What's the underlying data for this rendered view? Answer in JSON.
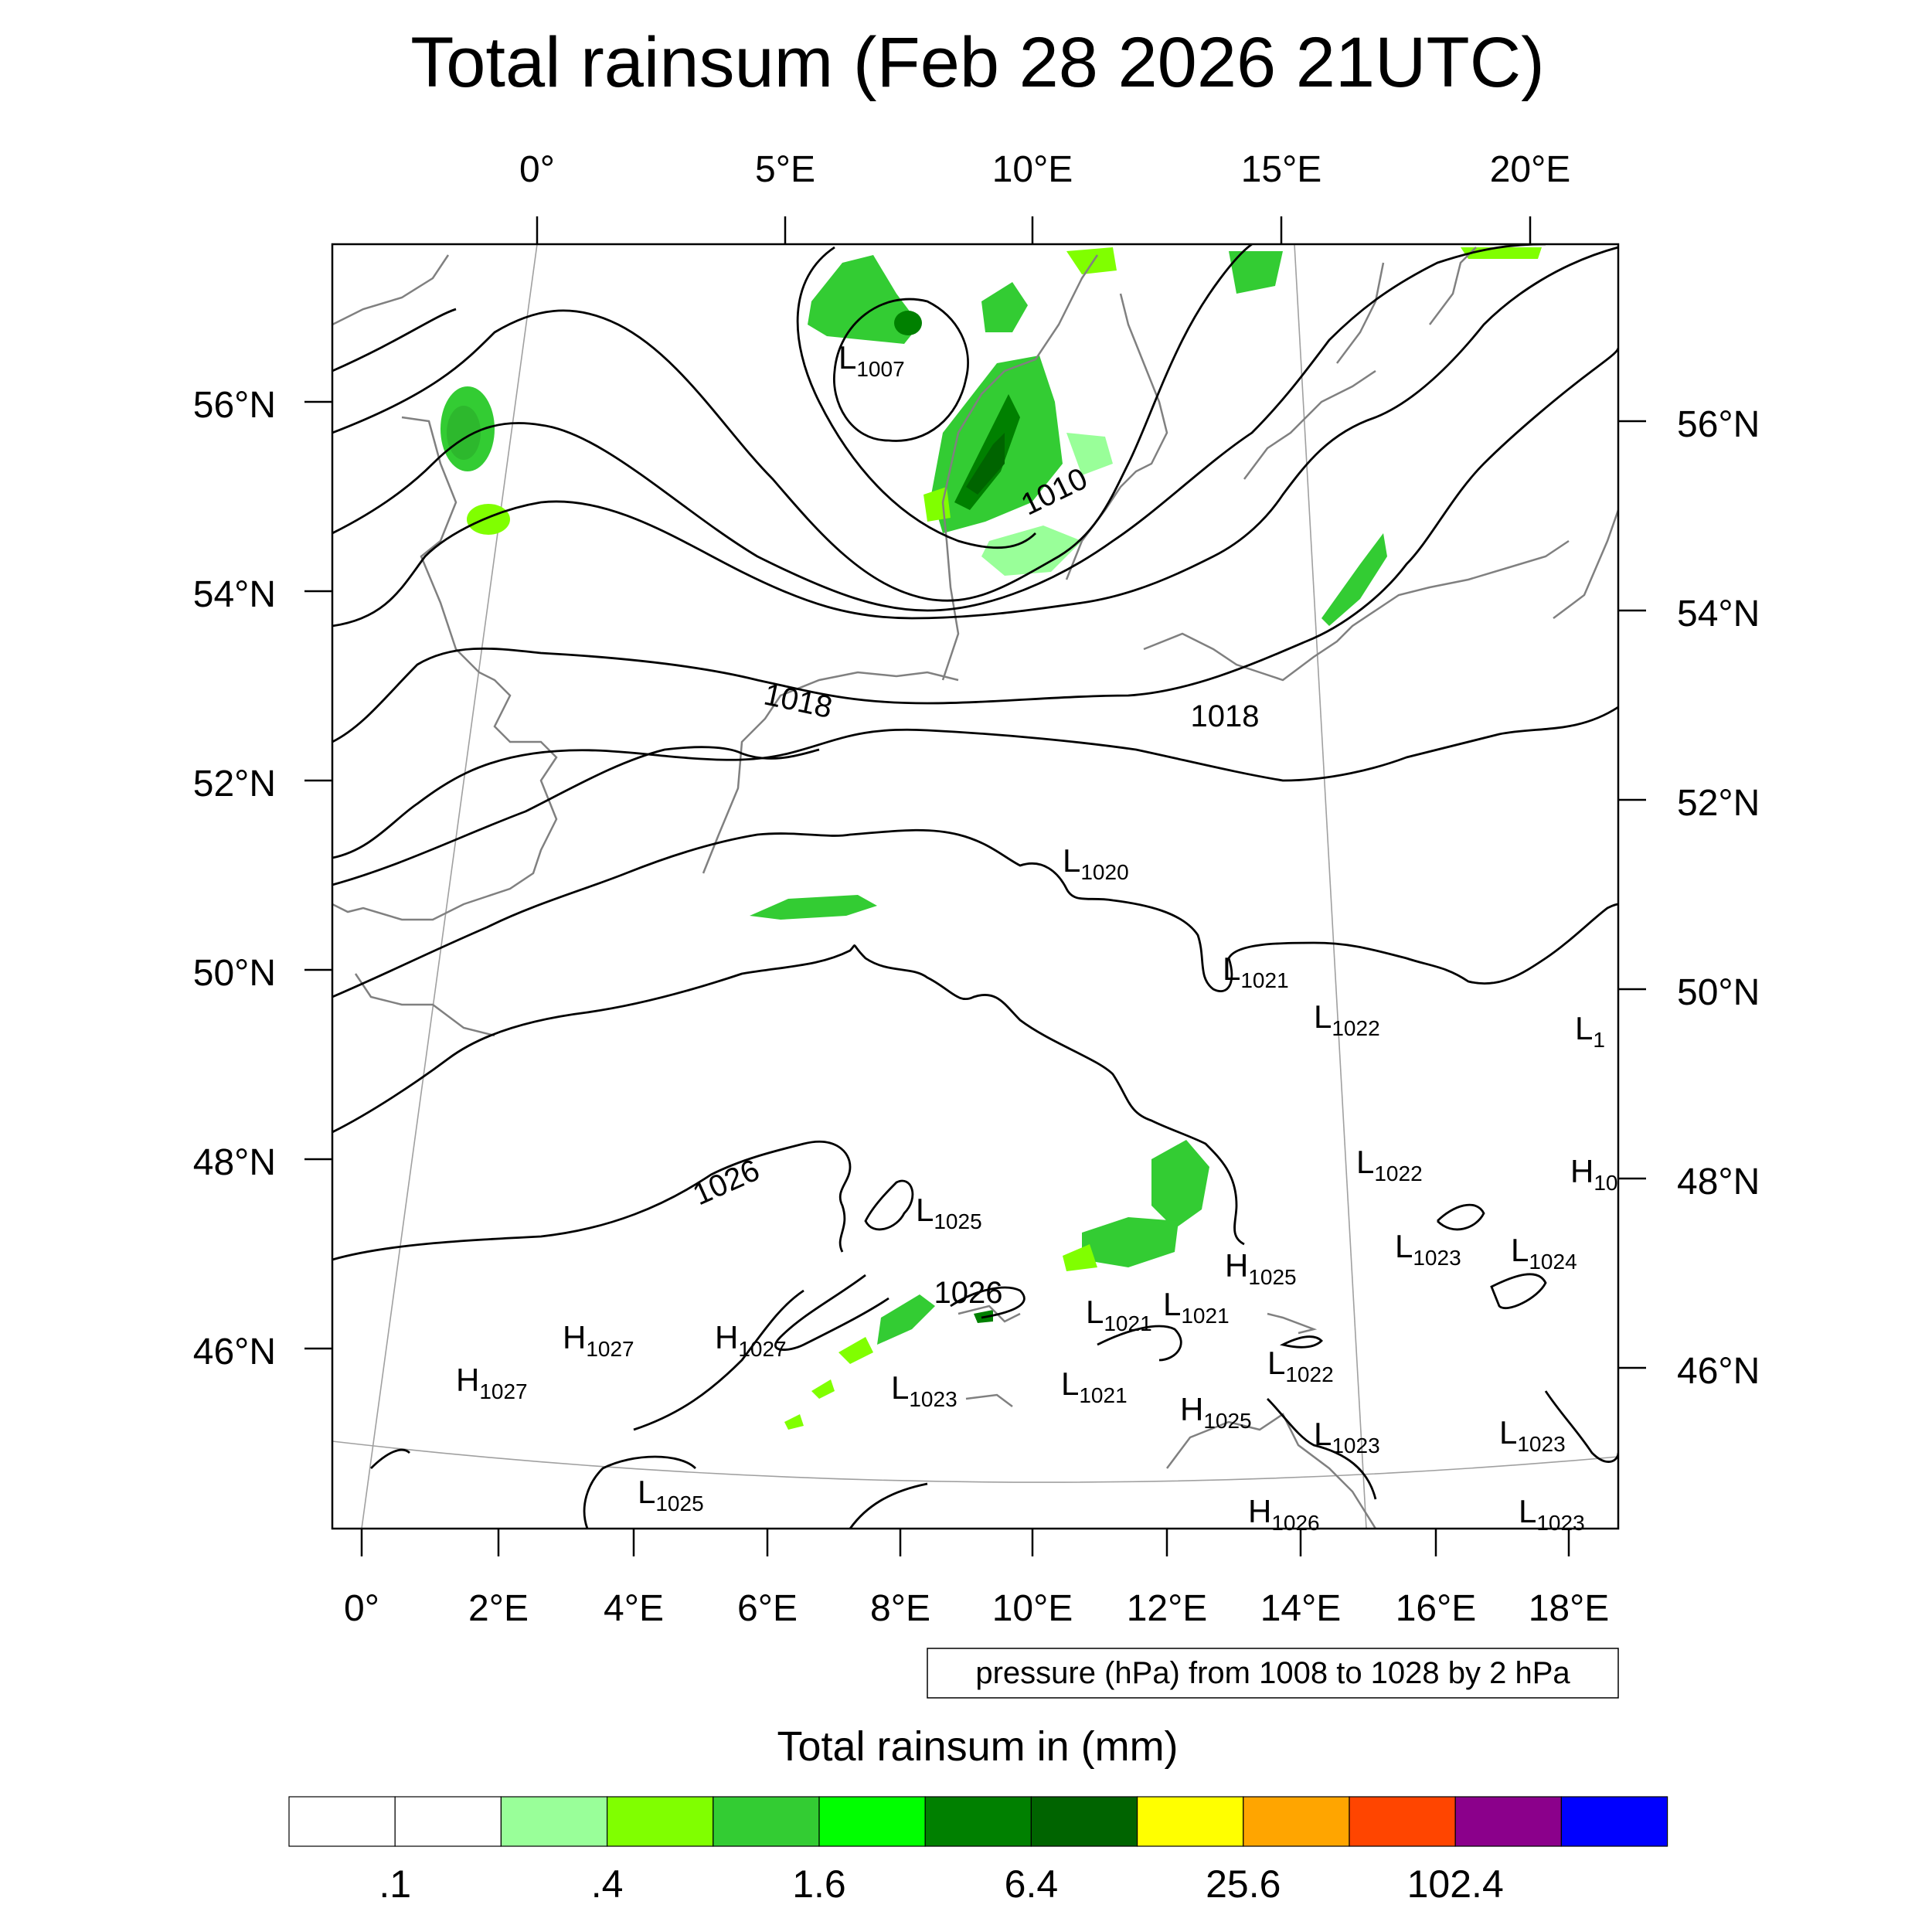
{
  "title": "Total rainsum (Feb 28 2026 21UTC)",
  "top_lon_ticks": [
    "0°",
    "5°E",
    "10°E",
    "15°E",
    "20°E"
  ],
  "bottom_lon_ticks": [
    "0°",
    "2°E",
    "4°E",
    "6°E",
    "8°E",
    "10°E",
    "12°E",
    "14°E",
    "16°E",
    "18°E"
  ],
  "left_lat_ticks": [
    "56°N",
    "54°N",
    "52°N",
    "50°N",
    "48°N",
    "46°N"
  ],
  "right_lat_ticks": [
    "56°N",
    "54°N",
    "52°N",
    "50°N",
    "48°N",
    "46°N"
  ],
  "contour_note": "pressure (hPa) from 1008 to 1028 by 2 hPa",
  "contour_labels": [
    "1010",
    "1018",
    "1018",
    "1026",
    "1026"
  ],
  "pressure_centers": [
    {
      "kind": "L",
      "value": "1007"
    },
    {
      "kind": "L",
      "value": "1020"
    },
    {
      "kind": "L",
      "value": "1021"
    },
    {
      "kind": "L",
      "value": "1022"
    },
    {
      "kind": "L",
      "value": "1"
    },
    {
      "kind": "L",
      "value": "1022"
    },
    {
      "kind": "H",
      "value": "10"
    },
    {
      "kind": "L",
      "value": "1025"
    },
    {
      "kind": "L",
      "value": "1023"
    },
    {
      "kind": "L",
      "value": "1024"
    },
    {
      "kind": "H",
      "value": "1025"
    },
    {
      "kind": "L",
      "value": "1021"
    },
    {
      "kind": "L",
      "value": "1021"
    },
    {
      "kind": "H",
      "value": "1027"
    },
    {
      "kind": "H",
      "value": "1027"
    },
    {
      "kind": "H",
      "value": "1027"
    },
    {
      "kind": "L",
      "value": "1022"
    },
    {
      "kind": "L",
      "value": "1023"
    },
    {
      "kind": "L",
      "value": "1021"
    },
    {
      "kind": "H",
      "value": "1025"
    },
    {
      "kind": "L",
      "value": "1023"
    },
    {
      "kind": "L",
      "value": "1023"
    },
    {
      "kind": "L",
      "value": "1025"
    },
    {
      "kind": "H",
      "value": "1026"
    },
    {
      "kind": "L",
      "value": "1023"
    }
  ],
  "colorbar": {
    "title": "Total rainsum in (mm)",
    "colors": [
      "#ffffff",
      "#ffffff",
      "#99ff99",
      "#80ff00",
      "#33cc33",
      "#00ff00",
      "#008000",
      "#006400",
      "#ffff00",
      "#ffa500",
      "#ff4500",
      "#8b008b",
      "#0000ff"
    ],
    "labels": [
      ".1",
      ".4",
      "1.6",
      "6.4",
      "25.6",
      "102.4"
    ]
  },
  "colors": {
    "contour": "#000000",
    "coastline": "#808080",
    "graticule": "#a0a0a0"
  }
}
